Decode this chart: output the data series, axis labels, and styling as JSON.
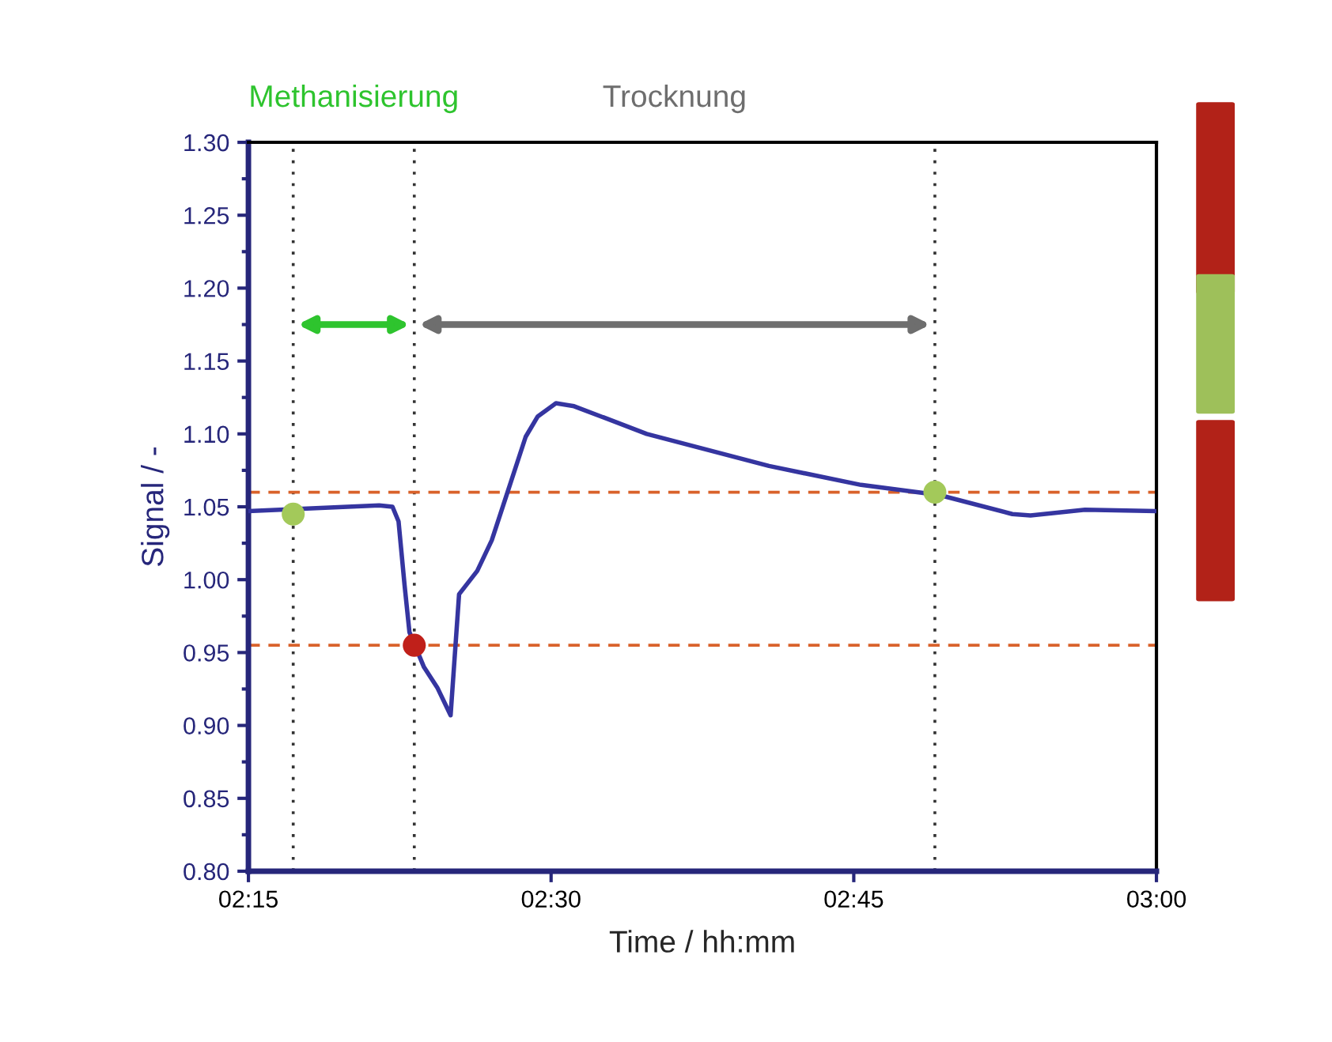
{
  "chart_data": {
    "type": "line",
    "xlabel": "Time / hh:mm",
    "ylabel": "Signal / -",
    "xlim": [
      2.25,
      3.0
    ],
    "xticks": [
      {
        "value": 2.25,
        "label": "02:15"
      },
      {
        "value": 2.5,
        "label": "02:30"
      },
      {
        "value": 2.75,
        "label": "02:45"
      },
      {
        "value": 3.0,
        "label": "03:00"
      }
    ],
    "ylim": [
      0.8,
      1.3
    ],
    "yticks": [
      {
        "value": 0.8,
        "label": "0.80"
      },
      {
        "value": 0.85,
        "label": "0.85"
      },
      {
        "value": 0.9,
        "label": "0.90"
      },
      {
        "value": 0.95,
        "label": "0.95"
      },
      {
        "value": 1.0,
        "label": "1.00"
      },
      {
        "value": 1.05,
        "label": "1.05"
      },
      {
        "value": 1.1,
        "label": "1.10"
      },
      {
        "value": 1.15,
        "label": "1.15"
      },
      {
        "value": 1.2,
        "label": "1.20"
      },
      {
        "value": 1.25,
        "label": "1.25"
      },
      {
        "value": 1.3,
        "label": "1.30"
      }
    ],
    "grid": false,
    "legend": false,
    "line_style": "solid",
    "annotations": [
      "Methanisierung",
      "Trocknung"
    ],
    "series": [
      {
        "marker": "none",
        "color": "#3535a0",
        "x": [
          2.25,
          2.358,
          2.369,
          2.374,
          2.379,
          2.383,
          2.395,
          2.406,
          2.417,
          2.424,
          2.439,
          2.451,
          2.464,
          2.479,
          2.489,
          2.504,
          2.519,
          2.579,
          2.68,
          2.756,
          2.821,
          2.881,
          2.896,
          2.941,
          3.0
        ],
        "values": [
          1.047,
          1.051,
          1.05,
          1.04,
          0.996,
          0.964,
          0.94,
          0.926,
          0.907,
          0.99,
          1.006,
          1.027,
          1.06,
          1.098,
          1.112,
          1.121,
          1.119,
          1.1,
          1.078,
          1.065,
          1.058,
          1.045,
          1.044,
          1.048,
          1.047
        ]
      },
      {
        "type": "scatter",
        "marker": "circle",
        "x": [
          2.287,
          2.387,
          2.817
        ],
        "values": [
          1.045,
          0.955,
          1.06
        ],
        "colors": [
          "#a3c95a",
          "#c0201a",
          "#a3c95a"
        ]
      }
    ],
    "ref_lines": [
      {
        "axis": "x",
        "value": 2.287,
        "color": "#333333",
        "line_style": "dotted"
      },
      {
        "axis": "x",
        "value": 2.387,
        "color": "#333333",
        "line_style": "dotted"
      },
      {
        "axis": "x",
        "value": 2.817,
        "color": "#333333",
        "line_style": "dotted"
      },
      {
        "axis": "y",
        "value": 1.06,
        "color": "#d9622b",
        "line_style": "dashed"
      },
      {
        "axis": "y",
        "value": 0.955,
        "color": "#d9622b",
        "line_style": "dashed"
      }
    ]
  }
}
